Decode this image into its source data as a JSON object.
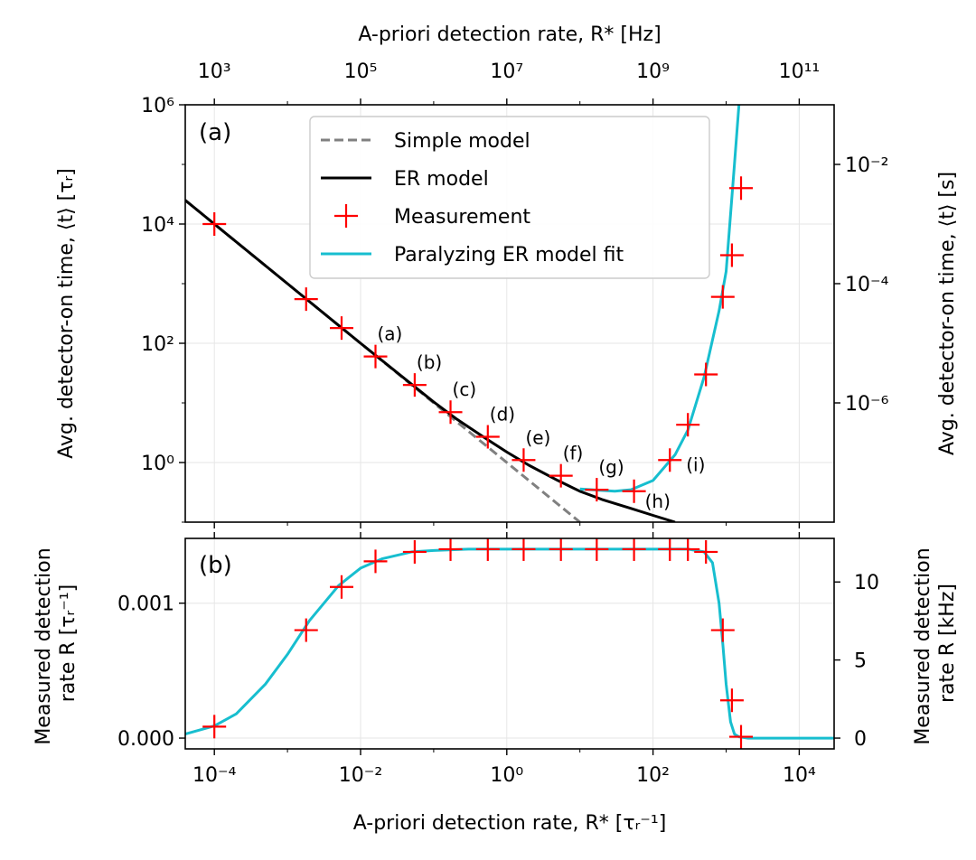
{
  "chart_data": [
    {
      "type": "line",
      "panel_label": "(a)",
      "xscale": "log",
      "yscale": "log",
      "xlim": [
        4e-05,
        30000
      ],
      "ylim": [
        0.1,
        1000000
      ],
      "xlabel": "",
      "ylabel": "Avg. detector-on time, ⟨t⟩ [τᵣ]",
      "ylabel_right": "Avg. detector-on time, ⟨t⟩ [s]",
      "xlabel_top": "A-priori detection rate, R* [Hz]",
      "y_ticks": [
        {
          "value": 1,
          "label": "10⁰"
        },
        {
          "value": 100,
          "label": "10²"
        },
        {
          "value": 10000,
          "label": "10⁴"
        },
        {
          "value": 1000000,
          "label": "10⁶"
        }
      ],
      "y_right_ticks": [
        {
          "value": 10,
          "label": "10⁻⁶"
        },
        {
          "value": 1000,
          "label": "10⁻⁴"
        },
        {
          "value": 100000,
          "label": "10⁻²"
        }
      ],
      "x_top_ticks": [
        {
          "value": 0.0001,
          "label": "10³"
        },
        {
          "value": 0.01,
          "label": "10⁵"
        },
        {
          "value": 1,
          "label": "10⁷"
        },
        {
          "value": 100,
          "label": "10⁹"
        },
        {
          "value": 10000,
          "label": "10¹¹"
        }
      ],
      "grid": true,
      "legend_position": "top-center",
      "series": [
        {
          "name": "Simple model",
          "style": "dashed",
          "color": "#808080",
          "x": [
            4e-05,
            0.0001,
            0.001,
            0.01,
            0.1,
            0.2,
            0.5,
            1,
            2,
            5,
            10
          ],
          "y": [
            25000,
            10000,
            1000,
            100,
            10,
            5,
            2,
            1,
            0.5,
            0.2,
            0.1
          ]
        },
        {
          "name": "ER model",
          "style": "solid",
          "color": "#000000",
          "x": [
            4e-05,
            0.0001,
            0.001,
            0.01,
            0.1,
            0.2,
            0.5,
            1,
            2,
            5,
            10,
            20,
            50,
            100,
            200
          ],
          "y": [
            25000,
            10000,
            1000,
            100,
            10.4,
            5.5,
            2.6,
            1.5,
            0.9,
            0.5,
            0.33,
            0.24,
            0.17,
            0.13,
            0.1
          ]
        },
        {
          "name": "Measurement",
          "style": "markers",
          "color": "#ff0000",
          "x": [
            0.0001,
            0.0018,
            0.0055,
            0.016,
            0.055,
            0.17,
            0.55,
            1.7,
            5.5,
            17,
            55,
            170,
            300,
            530,
            900,
            1200,
            1600
          ],
          "y": [
            10000,
            550,
            180,
            60,
            20,
            7,
            2.7,
            1.1,
            0.6,
            0.35,
            0.33,
            1.1,
            4.3,
            30,
            600,
            3000,
            40000
          ]
        },
        {
          "name": "Paralyzing ER model fit",
          "style": "solid",
          "color": "#17becf",
          "x": [
            10,
            20,
            30,
            50,
            100,
            200,
            300,
            500,
            800,
            1000,
            1300,
            1500
          ],
          "y": [
            0.36,
            0.34,
            0.33,
            0.35,
            0.5,
            1.35,
            3.5,
            27,
            350,
            1600,
            100000,
            1000000
          ]
        }
      ],
      "annotations": [
        {
          "text": "(a)",
          "x": 0.016,
          "y": 60
        },
        {
          "text": "(b)",
          "x": 0.055,
          "y": 20
        },
        {
          "text": "(c)",
          "x": 0.17,
          "y": 7
        },
        {
          "text": "(d)",
          "x": 0.55,
          "y": 2.7
        },
        {
          "text": "(e)",
          "x": 1.7,
          "y": 1.1
        },
        {
          "text": "(f)",
          "x": 5.5,
          "y": 0.6
        },
        {
          "text": "(g)",
          "x": 17,
          "y": 0.35
        },
        {
          "text": "(h)",
          "x": 55,
          "y": 0.33
        },
        {
          "text": "(i)",
          "x": 170,
          "y": 1.1
        }
      ]
    },
    {
      "type": "line",
      "panel_label": "(b)",
      "xscale": "log",
      "yscale": "linear",
      "xlim": [
        4e-05,
        30000
      ],
      "ylim": [
        -8e-05,
        0.00148
      ],
      "xlabel": "A-priori detection rate, R* [τᵣ⁻¹]",
      "ylabel_lines": [
        "Measured detection",
        "rate R [τᵣ⁻¹]"
      ],
      "ylabel_right_lines": [
        "Measured detection",
        "rate R [kHz]"
      ],
      "x_ticks": [
        {
          "value": 0.0001,
          "label": "10⁻⁴"
        },
        {
          "value": 0.01,
          "label": "10⁻²"
        },
        {
          "value": 1,
          "label": "10⁰"
        },
        {
          "value": 100,
          "label": "10²"
        },
        {
          "value": 10000,
          "label": "10⁴"
        }
      ],
      "y_ticks": [
        {
          "value": 0,
          "label": "0.000"
        },
        {
          "value": 0.001,
          "label": "0.001"
        }
      ],
      "y_right_ticks": [
        {
          "value": 0,
          "label": "0"
        },
        {
          "value": 0.000579,
          "label": "5"
        },
        {
          "value": 0.001157,
          "label": "10"
        }
      ],
      "grid": true,
      "series": [
        {
          "name": "Measurement",
          "style": "markers",
          "color": "#ff0000",
          "x": [
            0.0001,
            0.0018,
            0.0055,
            0.016,
            0.055,
            0.17,
            0.55,
            1.7,
            5.5,
            17,
            55,
            170,
            300,
            530,
            900,
            1200,
            1600
          ],
          "y": [
            8.5e-05,
            0.0008,
            0.00112,
            0.00131,
            0.00138,
            0.0014,
            0.0014,
            0.0014,
            0.0014,
            0.0014,
            0.0014,
            0.0014,
            0.0014,
            0.00138,
            0.0008,
            0.00028,
            1e-05
          ]
        },
        {
          "name": "Paralyzing ER model fit",
          "style": "solid",
          "color": "#17becf",
          "x": [
            4e-05,
            0.0001,
            0.0002,
            0.0005,
            0.001,
            0.002,
            0.005,
            0.01,
            0.02,
            0.05,
            0.1,
            0.3,
            1,
            10,
            100,
            300,
            500,
            650,
            800,
            900,
            1000,
            1150,
            1300,
            1500,
            2000,
            30000
          ],
          "y": [
            3e-05,
            9e-05,
            0.00018,
            0.0004,
            0.00062,
            0.00087,
            0.00113,
            0.00126,
            0.00133,
            0.00138,
            0.00139,
            0.0014,
            0.0014,
            0.0014,
            0.0014,
            0.0014,
            0.00138,
            0.0013,
            0.001,
            0.0007,
            0.0004,
            0.00012,
            3e-05,
            1e-05,
            0,
            0
          ]
        }
      ]
    }
  ]
}
